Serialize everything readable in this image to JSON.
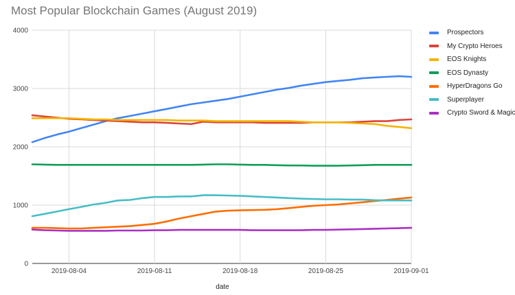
{
  "chart_data": {
    "type": "line",
    "title": "Most Popular Blockchain Games (August 2019)",
    "xlabel": "date",
    "ylabel": "",
    "x_start": "2019-08-01",
    "x_end": "2019-09-01",
    "ylim": [
      0,
      4000
    ],
    "yticks": [
      0,
      1000,
      2000,
      3000,
      4000
    ],
    "xticks": [
      "2019-08-04",
      "2019-08-11",
      "2019-08-18",
      "2019-08-25",
      "2019-09-01"
    ],
    "grid": true,
    "legend_position": "right",
    "x": [
      "2019-08-01",
      "2019-08-02",
      "2019-08-03",
      "2019-08-04",
      "2019-08-05",
      "2019-08-06",
      "2019-08-07",
      "2019-08-08",
      "2019-08-09",
      "2019-08-10",
      "2019-08-11",
      "2019-08-12",
      "2019-08-13",
      "2019-08-14",
      "2019-08-15",
      "2019-08-16",
      "2019-08-17",
      "2019-08-18",
      "2019-08-19",
      "2019-08-20",
      "2019-08-21",
      "2019-08-22",
      "2019-08-23",
      "2019-08-24",
      "2019-08-25",
      "2019-08-26",
      "2019-08-27",
      "2019-08-28",
      "2019-08-29",
      "2019-08-30",
      "2019-08-31",
      "2019-09-01"
    ],
    "series": [
      {
        "name": "Prospectors",
        "color": "#4285F4",
        "values": [
          2080,
          2150,
          2210,
          2260,
          2320,
          2380,
          2440,
          2490,
          2530,
          2570,
          2610,
          2650,
          2690,
          2730,
          2760,
          2790,
          2820,
          2860,
          2900,
          2940,
          2980,
          3010,
          3050,
          3080,
          3110,
          3130,
          3150,
          3175,
          3190,
          3200,
          3210,
          3200
        ]
      },
      {
        "name": "My Crypto Heroes",
        "color": "#DB4437",
        "values": [
          2540,
          2520,
          2500,
          2480,
          2470,
          2460,
          2450,
          2440,
          2430,
          2420,
          2420,
          2410,
          2400,
          2390,
          2430,
          2420,
          2420,
          2420,
          2420,
          2410,
          2410,
          2410,
          2410,
          2420,
          2420,
          2420,
          2420,
          2430,
          2440,
          2440,
          2460,
          2470
        ]
      },
      {
        "name": "EOS Knights",
        "color": "#F4B400",
        "values": [
          2490,
          2490,
          2490,
          2490,
          2480,
          2470,
          2470,
          2460,
          2460,
          2460,
          2460,
          2460,
          2450,
          2450,
          2450,
          2440,
          2440,
          2440,
          2440,
          2440,
          2440,
          2440,
          2430,
          2420,
          2420,
          2420,
          2410,
          2400,
          2390,
          2360,
          2340,
          2320
        ]
      },
      {
        "name": "EOS Dynasty",
        "color": "#0F9D58",
        "values": [
          1700,
          1695,
          1690,
          1690,
          1690,
          1690,
          1690,
          1690,
          1690,
          1690,
          1690,
          1690,
          1690,
          1690,
          1695,
          1700,
          1700,
          1695,
          1690,
          1690,
          1685,
          1680,
          1680,
          1675,
          1675,
          1675,
          1680,
          1685,
          1690,
          1690,
          1690,
          1690
        ]
      },
      {
        "name": "HyperDragons Go",
        "color": "#FF6D00",
        "values": [
          610,
          610,
          605,
          600,
          600,
          610,
          620,
          630,
          640,
          660,
          680,
          720,
          770,
          810,
          850,
          890,
          905,
          910,
          915,
          920,
          930,
          950,
          970,
          990,
          1000,
          1010,
          1030,
          1050,
          1070,
          1090,
          1110,
          1130
        ]
      },
      {
        "name": "Superplayer",
        "color": "#46BDC6",
        "values": [
          810,
          850,
          890,
          930,
          970,
          1010,
          1040,
          1080,
          1090,
          1120,
          1140,
          1140,
          1150,
          1150,
          1170,
          1170,
          1165,
          1160,
          1150,
          1140,
          1130,
          1120,
          1110,
          1105,
          1100,
          1100,
          1095,
          1095,
          1085,
          1080,
          1080,
          1080
        ]
      },
      {
        "name": "Crypto Sword & Magic",
        "color": "#AB30C4",
        "values": [
          580,
          570,
          565,
          560,
          560,
          560,
          560,
          565,
          565,
          565,
          570,
          570,
          575,
          575,
          575,
          575,
          575,
          575,
          570,
          570,
          570,
          570,
          570,
          575,
          575,
          580,
          585,
          590,
          595,
          600,
          605,
          610
        ]
      }
    ]
  }
}
